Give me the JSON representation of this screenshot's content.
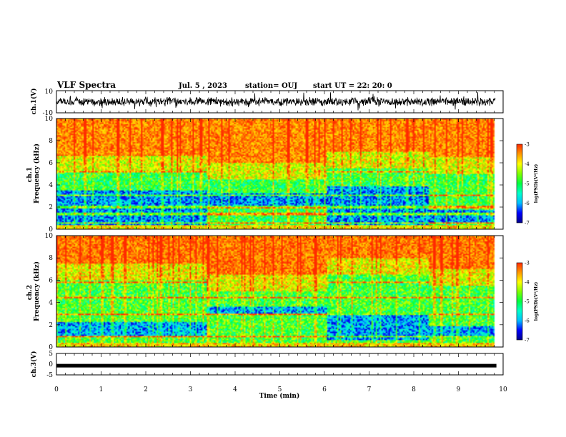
{
  "header": {
    "title": "VLF Spectra",
    "date": "Jul. 5 , 2023",
    "station": "station= OUJ",
    "start": "start UT = 22: 20: 0"
  },
  "chart_data": [
    {
      "type": "line",
      "panel": "ch1-waveform",
      "ylabel": "ch.1(V)",
      "ylim": [
        -10,
        10
      ],
      "yticks": [
        "10",
        "-10"
      ],
      "xlim": [
        0,
        10
      ]
    },
    {
      "type": "heatmap",
      "panel": "ch1-spectrogram",
      "ylabel": "ch.1\nFrequency (kHz)",
      "ylabel_lines": [
        "ch.1",
        "Frequency (kHz)"
      ],
      "ylim": [
        0,
        10
      ],
      "yticks": [
        "0",
        "2",
        "4",
        "6",
        "8",
        "10"
      ],
      "xlim": [
        0,
        10
      ],
      "colorbar": {
        "label": "log(PSD)(V²/Hz)",
        "range": [
          -7,
          -3
        ],
        "ticks": [
          "-3",
          "-4",
          "-5",
          "-6",
          "-7"
        ]
      },
      "segments": [
        {
          "x": [
            0,
            3.35
          ],
          "bg_top_khz": 5.2,
          "dark_band_khz": [
            0.3,
            3.5
          ]
        },
        {
          "x": [
            3.35,
            6.05
          ],
          "bg_top_khz": 4.5,
          "dark_band_khz": [
            2.0,
            3.2
          ]
        },
        {
          "x": [
            6.05,
            8.35
          ],
          "bg_top_khz": 5.5,
          "dark_band_khz": [
            0.3,
            3.8
          ]
        },
        {
          "x": [
            8.35,
            9.83
          ],
          "bg_top_khz": 5.0,
          "dark_band_khz": [
            0.6,
            1.7
          ]
        }
      ]
    },
    {
      "type": "heatmap",
      "panel": "ch2-spectrogram",
      "ylabel": "ch.2\nFrequency (kHz)",
      "ylabel_lines": [
        "ch.2",
        "Frequency (kHz)"
      ],
      "ylim": [
        0,
        10
      ],
      "yticks": [
        "0",
        "2",
        "4",
        "6",
        "8",
        "10"
      ],
      "xlim": [
        0,
        10
      ],
      "colorbar": {
        "label": "log(PSD)(V²/Hz)",
        "range": [
          -7,
          -3
        ],
        "ticks": [
          "-3",
          "-4",
          "-5",
          "-6",
          "-7"
        ]
      },
      "segments": [
        {
          "x": [
            0,
            3.35
          ],
          "bg_top_khz": 6.0,
          "dark_band_khz": [
            1.0,
            2.2
          ]
        },
        {
          "x": [
            3.35,
            6.05
          ],
          "bg_top_khz": 5.0,
          "dark_band_khz": [
            3.0,
            3.6
          ]
        },
        {
          "x": [
            6.05,
            8.35
          ],
          "bg_top_khz": 6.5,
          "dark_band_khz": [
            0.6,
            3.0
          ]
        },
        {
          "x": [
            8.35,
            9.83
          ],
          "bg_top_khz": 5.5,
          "dark_band_khz": [
            0.8,
            1.8
          ]
        }
      ]
    },
    {
      "type": "line",
      "panel": "ch3-waveform",
      "ylabel": "ch.3(V)",
      "ylim": [
        -5,
        5
      ],
      "yticks": [
        "5",
        "0",
        "-5"
      ],
      "xlim": [
        0,
        10
      ],
      "xticks": [
        "0",
        "1",
        "2",
        "3",
        "4",
        "5",
        "6",
        "7",
        "8",
        "9",
        "10"
      ],
      "xlabel": "Time (min)",
      "constant_value": -0.7
    }
  ],
  "colors": {
    "scale": [
      "#00008b",
      "#0000ff",
      "#00bfff",
      "#00ffcc",
      "#00ff40",
      "#7fff00",
      "#ffff00",
      "#ff9900",
      "#ff2a00",
      "#ffffff"
    ]
  }
}
